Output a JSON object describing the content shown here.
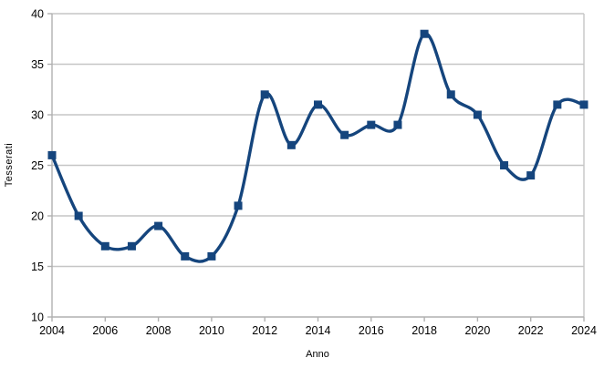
{
  "chart_data": {
    "type": "line",
    "title": "",
    "xlabel": "Anno",
    "ylabel": "Tesserati",
    "x": [
      2004,
      2005,
      2006,
      2007,
      2008,
      2009,
      2010,
      2011,
      2012,
      2013,
      2014,
      2015,
      2016,
      2017,
      2018,
      2019,
      2020,
      2021,
      2022,
      2023,
      2024
    ],
    "series": [
      {
        "name": "Tesserati",
        "values": [
          26,
          20,
          17,
          17,
          19,
          16,
          16,
          21,
          32,
          27,
          31,
          28,
          29,
          29,
          38,
          32,
          30,
          25,
          24,
          31,
          31
        ]
      }
    ],
    "xlim": [
      2004,
      2024
    ],
    "ylim": [
      10,
      40
    ],
    "x_ticks": [
      2004,
      2006,
      2008,
      2010,
      2012,
      2014,
      2016,
      2018,
      2020,
      2022,
      2024
    ],
    "y_ticks": [
      10,
      15,
      20,
      25,
      30,
      35,
      40
    ],
    "grid": "horizontal",
    "legend": "none",
    "smooth": true,
    "marker": "square",
    "line_color": "#15457d",
    "grid_color": "#c6c6c6",
    "axis_color": "#b0b0b0",
    "label_color": "#000000",
    "background": "#ffffff"
  }
}
